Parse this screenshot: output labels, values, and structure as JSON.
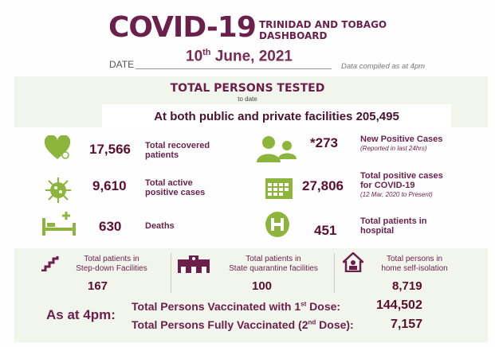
{
  "header": {
    "title": "COVID-19",
    "subtitle_line1": "TRINIDAD AND TOBAGO",
    "subtitle_line2": "DASHBOARD",
    "date_label": "DATE",
    "date_day": "10",
    "date_suffix": "th",
    "date_rest": " June, 2021",
    "compiled_note": "Data compiled as at 4pm"
  },
  "tested": {
    "heading": "TOTAL PERSONS TESTED",
    "subheading": "to date",
    "facilities_text": "At both public and private facilities 205,495"
  },
  "stats": {
    "recovered": {
      "value": "17,566",
      "label1": "Total recovered",
      "label2": "patients",
      "icon": "heart-icon"
    },
    "active": {
      "value": "9,610",
      "label1": "Total active",
      "label2": "positive cases",
      "icon": "virus-icon"
    },
    "deaths": {
      "value": "630",
      "label1": "Deaths",
      "icon": "hospital-bed-icon"
    },
    "new_cases": {
      "value": "*273",
      "label1": "New Positive Cases",
      "note": "(Reported in last 24hrs)",
      "icon": "people-icon"
    },
    "total_cases": {
      "value": "27,806",
      "label1": "Total positive cases",
      "label2": "for COVID-19",
      "note": "(12 Mar, 2020 to Present)",
      "icon": "calendar-icon"
    },
    "hospital": {
      "value": "451",
      "label1": "Total patients in",
      "label2": "hospital",
      "icon": "hospital-h-icon"
    }
  },
  "facilities": [
    {
      "label1": "Total patients in",
      "label2": "Step-down Facilities",
      "value": "167",
      "icon": "stairs-icon"
    },
    {
      "label1": "Total patients in",
      "label2": "State quarantine facilities",
      "value": "100",
      "icon": "building-icon"
    },
    {
      "label1": "Total persons in",
      "label2": "home self-isolation",
      "value": "8,719",
      "icon": "home-icon"
    }
  ],
  "vaccination": {
    "as_at": "As at 4pm:",
    "dose1_pre": "Total Persons Vaccinated with 1",
    "dose1_sup": "st",
    "dose1_post": " Dose:",
    "dose1_value": "144,502",
    "dose2_pre": "Total Persons Fully Vaccinated (2",
    "dose2_sup": "nd",
    "dose2_post": " Dose):",
    "dose2_value": "7,157"
  },
  "colors": {
    "maroon": "#6b1f4b",
    "green": "#8db53c",
    "panel": "#f2f5ec"
  }
}
